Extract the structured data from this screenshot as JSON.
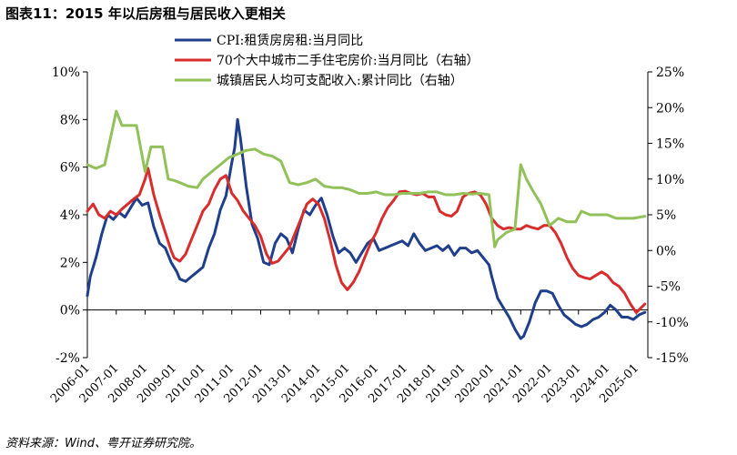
{
  "title": "图表11：2015 年以后房租与居民收入更相关",
  "source": "资料来源：Wind、粤开证券研究院。",
  "chart_data": {
    "type": "line",
    "left_axis": {
      "ylim": [
        -2,
        10
      ],
      "ticks": [
        "-2%",
        "0%",
        "2%",
        "4%",
        "6%",
        "8%",
        "10%"
      ],
      "tick_values": [
        -2,
        0,
        2,
        4,
        6,
        8,
        10
      ]
    },
    "right_axis": {
      "ylim": [
        -15,
        25
      ],
      "ticks": [
        "-15%",
        "-10%",
        "-5%",
        "0%",
        "5%",
        "10%",
        "15%",
        "20%",
        "25%"
      ],
      "tick_values": [
        -15,
        -10,
        -5,
        0,
        5,
        10,
        15,
        20,
        25
      ]
    },
    "x_ticks": [
      "2006-01",
      "2007-01",
      "2008-01",
      "2009-01",
      "2010-01",
      "2011-01",
      "2012-01",
      "2013-01",
      "2014-01",
      "2015-01",
      "2016-01",
      "2017-01",
      "2018-01",
      "2019-01",
      "2020-01",
      "2021-01",
      "2022-01",
      "2023-01",
      "2024-01",
      "2025-01"
    ],
    "xlim": [
      2006.0,
      2025.4
    ],
    "legend_position": "top",
    "series": [
      {
        "name": "CPI:租赁房房租:当月同比",
        "axis": "left",
        "color": "#1f3f8c",
        "x": [
          2006.0,
          2006.1,
          2006.3,
          2006.5,
          2006.7,
          2006.9,
          2007.1,
          2007.3,
          2007.5,
          2007.7,
          2007.9,
          2008.1,
          2008.3,
          2008.5,
          2008.7,
          2008.9,
          2009.1,
          2009.2,
          2009.4,
          2009.6,
          2009.8,
          2010.0,
          2010.2,
          2010.4,
          2010.6,
          2010.8,
          2011.0,
          2011.1,
          2011.2,
          2011.3,
          2011.5,
          2011.7,
          2011.9,
          2012.1,
          2012.3,
          2012.5,
          2012.7,
          2012.9,
          2013.1,
          2013.3,
          2013.5,
          2013.7,
          2013.9,
          2014.1,
          2014.3,
          2014.5,
          2014.7,
          2014.9,
          2015.1,
          2015.3,
          2015.5,
          2015.7,
          2015.9,
          2016.1,
          2016.3,
          2016.5,
          2016.7,
          2016.9,
          2017.1,
          2017.3,
          2017.5,
          2017.7,
          2017.9,
          2018.1,
          2018.3,
          2018.5,
          2018.7,
          2018.9,
          2019.1,
          2019.3,
          2019.5,
          2019.7,
          2019.9,
          2020.0,
          2020.2,
          2020.4,
          2020.6,
          2020.8,
          2021.0,
          2021.1,
          2021.3,
          2021.5,
          2021.7,
          2021.9,
          2022.1,
          2022.3,
          2022.5,
          2022.7,
          2022.9,
          2023.1,
          2023.3,
          2023.5,
          2023.7,
          2023.9,
          2024.1,
          2024.3,
          2024.5,
          2024.7,
          2024.9,
          2025.1,
          2025.3
        ],
        "values": [
          0.6,
          1.4,
          2.2,
          3.2,
          4.0,
          3.8,
          4.1,
          3.9,
          4.3,
          4.7,
          4.4,
          4.5,
          3.5,
          2.8,
          2.6,
          2.0,
          1.6,
          1.3,
          1.2,
          1.4,
          1.6,
          1.8,
          2.6,
          3.2,
          4.2,
          4.8,
          6.2,
          6.8,
          8.0,
          7.2,
          5.2,
          3.6,
          3.0,
          2.0,
          1.9,
          2.8,
          3.2,
          3.0,
          2.4,
          3.4,
          4.2,
          4.0,
          4.4,
          4.7,
          4.0,
          3.1,
          2.4,
          2.6,
          2.4,
          2.0,
          2.4,
          2.8,
          3.0,
          2.5,
          2.6,
          2.7,
          2.8,
          2.9,
          2.7,
          3.2,
          2.8,
          2.5,
          2.6,
          2.7,
          2.5,
          2.7,
          2.3,
          2.6,
          2.6,
          2.4,
          2.5,
          2.2,
          1.9,
          1.4,
          0.5,
          0.1,
          -0.3,
          -0.8,
          -1.2,
          -1.1,
          -0.5,
          0.3,
          0.8,
          0.8,
          0.7,
          0.2,
          -0.2,
          -0.4,
          -0.6,
          -0.7,
          -0.6,
          -0.4,
          -0.3,
          -0.1,
          0.2,
          0.0,
          -0.3,
          -0.3,
          -0.4,
          -0.2,
          -0.1
        ]
      },
      {
        "name": "70个大中城市二手住宅房价:当月同比（右轴）",
        "axis": "right",
        "color": "#d92d2d",
        "x": [
          2006.0,
          2006.2,
          2006.4,
          2006.6,
          2006.8,
          2007.0,
          2007.2,
          2007.4,
          2007.6,
          2007.8,
          2008.0,
          2008.1,
          2008.3,
          2008.5,
          2008.7,
          2008.9,
          2009.0,
          2009.2,
          2009.4,
          2009.6,
          2009.8,
          2010.0,
          2010.2,
          2010.4,
          2010.6,
          2010.8,
          2011.0,
          2011.2,
          2011.4,
          2011.6,
          2011.8,
          2012.0,
          2012.2,
          2012.4,
          2012.6,
          2012.8,
          2013.0,
          2013.2,
          2013.4,
          2013.6,
          2013.8,
          2014.0,
          2014.2,
          2014.4,
          2014.6,
          2014.8,
          2015.0,
          2015.2,
          2015.4,
          2015.6,
          2015.8,
          2016.0,
          2016.2,
          2016.4,
          2016.6,
          2016.8,
          2017.0,
          2017.2,
          2017.4,
          2017.6,
          2017.8,
          2018.0,
          2018.2,
          2018.4,
          2018.6,
          2018.8,
          2019.0,
          2019.2,
          2019.4,
          2019.6,
          2019.8,
          2020.0,
          2020.2,
          2020.4,
          2020.6,
          2020.8,
          2021.0,
          2021.2,
          2021.4,
          2021.6,
          2021.8,
          2022.0,
          2022.2,
          2022.4,
          2022.6,
          2022.8,
          2023.0,
          2023.2,
          2023.4,
          2023.6,
          2023.8,
          2024.0,
          2024.2,
          2024.4,
          2024.6,
          2024.8,
          2025.0,
          2025.3
        ],
        "values": [
          5.5,
          6.5,
          5.0,
          4.5,
          5.5,
          5.0,
          5.8,
          6.5,
          7.2,
          7.8,
          10.0,
          11.5,
          7.8,
          5.0,
          2.5,
          0.0,
          -1.0,
          -1.5,
          -0.5,
          1.5,
          3.5,
          5.5,
          6.5,
          8.5,
          10.0,
          10.5,
          8.0,
          7.0,
          5.5,
          4.5,
          3.5,
          2.0,
          -0.5,
          -1.8,
          -1.5,
          -0.5,
          0.5,
          2.5,
          4.5,
          6.5,
          7.2,
          6.5,
          4.5,
          1.5,
          -2.0,
          -4.5,
          -5.5,
          -4.5,
          -3.0,
          -1.0,
          1.0,
          2.5,
          4.5,
          6.0,
          7.0,
          8.2,
          8.3,
          8.0,
          7.8,
          8.0,
          7.5,
          7.5,
          5.5,
          5.0,
          4.8,
          5.5,
          7.5,
          8.0,
          8.2,
          7.8,
          6.5,
          4.5,
          3.5,
          3.0,
          3.2,
          3.0,
          3.0,
          3.5,
          3.2,
          3.0,
          3.5,
          3.5,
          2.5,
          1.0,
          -1.0,
          -2.5,
          -3.5,
          -3.8,
          -4.0,
          -3.5,
          -3.0,
          -3.5,
          -4.5,
          -5.0,
          -6.0,
          -7.5,
          -8.7,
          -7.5
        ]
      },
      {
        "name": "城镇居民人均可支配收入:累计同比（右轴）",
        "axis": "right",
        "color": "#92c15a",
        "x": [
          2006.0,
          2006.3,
          2006.6,
          2007.0,
          2007.2,
          2007.4,
          2007.7,
          2008.0,
          2008.2,
          2008.4,
          2008.6,
          2008.8,
          2009.0,
          2009.2,
          2009.5,
          2009.8,
          2010.0,
          2010.3,
          2010.6,
          2010.9,
          2011.2,
          2011.5,
          2011.8,
          2012.1,
          2012.4,
          2012.7,
          2013.0,
          2013.3,
          2013.6,
          2013.9,
          2014.2,
          2014.5,
          2014.8,
          2015.1,
          2015.4,
          2015.7,
          2016.0,
          2016.3,
          2016.6,
          2016.9,
          2017.2,
          2017.5,
          2017.8,
          2018.1,
          2018.4,
          2018.7,
          2019.0,
          2019.3,
          2019.6,
          2019.9,
          2020.1,
          2020.2,
          2020.5,
          2020.8,
          2021.0,
          2021.2,
          2021.4,
          2021.7,
          2022.0,
          2022.3,
          2022.6,
          2022.9,
          2023.1,
          2023.4,
          2023.7,
          2024.0,
          2024.3,
          2024.6,
          2024.9,
          2025.3
        ],
        "values": [
          12.0,
          11.5,
          12.0,
          19.5,
          17.5,
          17.5,
          17.5,
          11.0,
          14.5,
          14.5,
          14.5,
          10.0,
          9.8,
          9.5,
          9.0,
          8.8,
          10.0,
          11.0,
          12.0,
          13.0,
          13.5,
          14.0,
          14.2,
          13.5,
          13.2,
          12.5,
          9.5,
          9.2,
          9.5,
          10.0,
          9.0,
          8.8,
          8.8,
          8.5,
          8.0,
          8.0,
          8.2,
          7.8,
          7.8,
          8.0,
          8.0,
          8.0,
          8.2,
          8.2,
          7.8,
          7.8,
          8.0,
          7.9,
          8.0,
          7.8,
          0.5,
          1.5,
          2.5,
          3.0,
          12.0,
          10.0,
          8.5,
          6.5,
          3.5,
          4.5,
          4.0,
          4.0,
          5.5,
          5.0,
          5.0,
          5.0,
          4.5,
          4.5,
          4.5,
          4.8
        ]
      }
    ]
  }
}
